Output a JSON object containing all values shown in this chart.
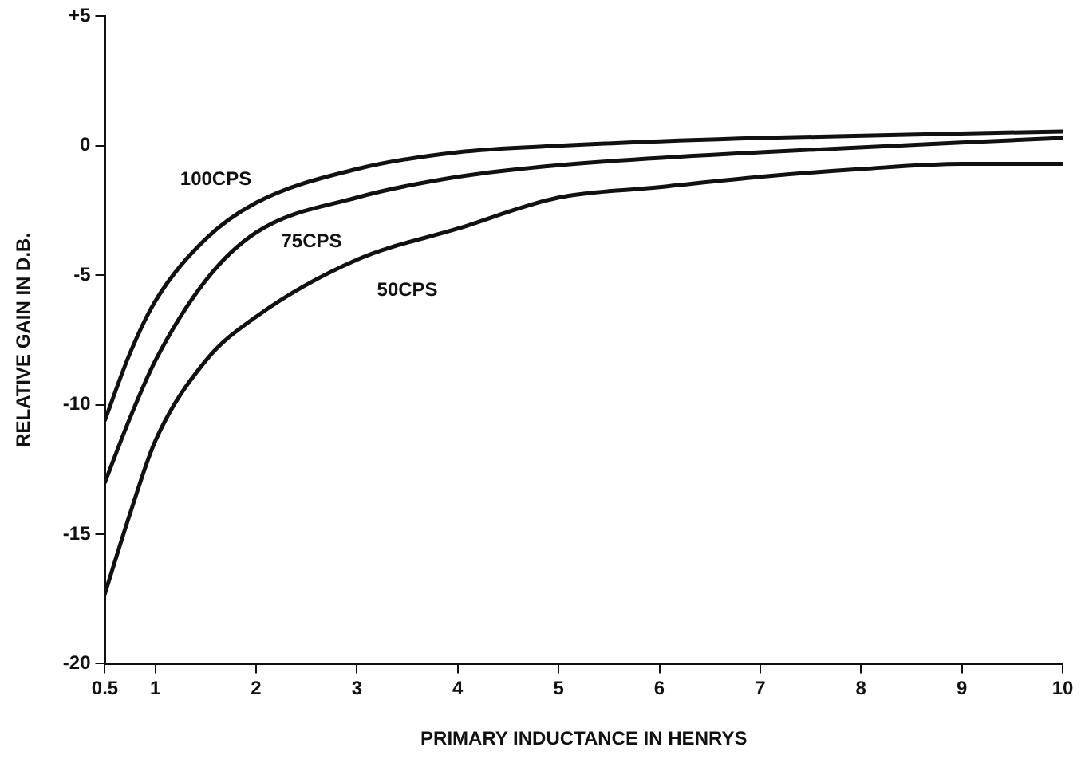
{
  "chart_data": {
    "type": "line",
    "xlabel": "PRIMARY INDUCTANCE IN HENRYS",
    "ylabel": "RELATIVE GAIN IN D.B.",
    "xlim": [
      0.5,
      10
    ],
    "xticks": [
      0.5,
      1,
      2,
      3,
      4,
      5,
      6,
      7,
      8,
      9,
      10
    ],
    "ylim": [
      -20,
      5
    ],
    "yticks": [
      {
        "value": 5,
        "label": "+5"
      },
      0,
      -5,
      -10,
      -15,
      -20
    ],
    "grid": false,
    "legend": false,
    "marker": "none",
    "line_style": "solid",
    "series": [
      {
        "name": "100CPS",
        "color": "#111111",
        "x": [
          0.5,
          0.75,
          1,
          1.5,
          2,
          3,
          4,
          5,
          7,
          10
        ],
        "values": [
          -10.6,
          -8,
          -6,
          -3.6,
          -2.2,
          -0.9,
          -0.25,
          0,
          0.3,
          0.55
        ]
      },
      {
        "name": "75CPS",
        "color": "#111111",
        "x": [
          0.5,
          0.75,
          1,
          1.5,
          2,
          3,
          4,
          5,
          7,
          10
        ],
        "values": [
          -13,
          -10.5,
          -8.3,
          -5.2,
          -3.35,
          -2,
          -1.2,
          -0.75,
          -0.25,
          0.3
        ]
      },
      {
        "name": "50CPS",
        "color": "#111111",
        "x": [
          0.5,
          0.75,
          1,
          1.5,
          2,
          3,
          4,
          5,
          6,
          7,
          8,
          9,
          10
        ],
        "values": [
          -17.3,
          -14.2,
          -11.4,
          -8.3,
          -6.6,
          -4.4,
          -3.2,
          -2,
          -1.6,
          -1.2,
          -0.9,
          -0.7,
          -0.7
        ]
      }
    ]
  }
}
